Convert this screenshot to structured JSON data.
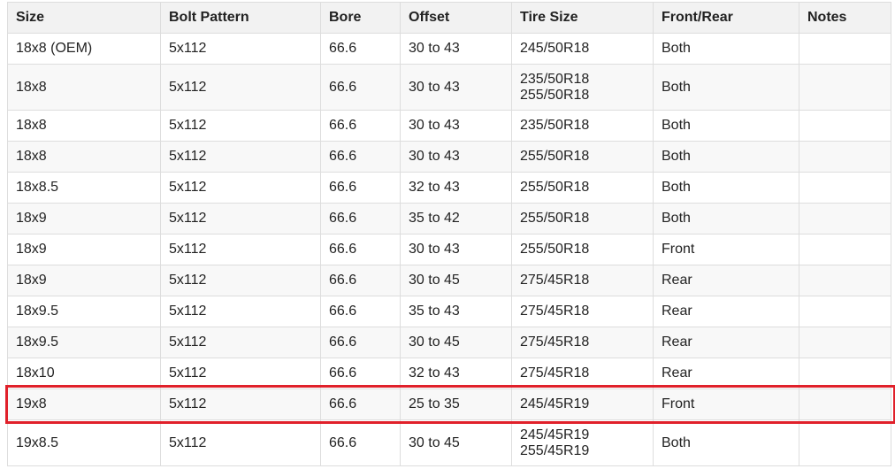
{
  "table": {
    "headers": [
      "Size",
      "Bolt Pattern",
      "Bore",
      "Offset",
      "Tire Size",
      "Front/Rear",
      "Notes"
    ],
    "rows": [
      [
        "18x8 (OEM)",
        "5x112",
        "66.6",
        "30 to 43",
        [
          "245/50R18"
        ],
        "Both",
        ""
      ],
      [
        "18x8",
        "5x112",
        "66.6",
        "30 to 43",
        [
          "235/50R18",
          "255/50R18"
        ],
        "Both",
        ""
      ],
      [
        "18x8",
        "5x112",
        "66.6",
        "30 to 43",
        [
          "235/50R18"
        ],
        "Both",
        ""
      ],
      [
        "18x8",
        "5x112",
        "66.6",
        "30 to 43",
        [
          "255/50R18"
        ],
        "Both",
        ""
      ],
      [
        "18x8.5",
        "5x112",
        "66.6",
        "32 to 43",
        [
          "255/50R18"
        ],
        "Both",
        ""
      ],
      [
        "18x9",
        "5x112",
        "66.6",
        "35 to 42",
        [
          "255/50R18"
        ],
        "Both",
        ""
      ],
      [
        "18x9",
        "5x112",
        "66.6",
        "30 to 43",
        [
          "255/50R18"
        ],
        "Front",
        ""
      ],
      [
        "18x9",
        "5x112",
        "66.6",
        "30 to 45",
        [
          "275/45R18"
        ],
        "Rear",
        ""
      ],
      [
        "18x9.5",
        "5x112",
        "66.6",
        "35 to 43",
        [
          "275/45R18"
        ],
        "Rear",
        ""
      ],
      [
        "18x9.5",
        "5x112",
        "66.6",
        "30 to 45",
        [
          "275/45R18"
        ],
        "Rear",
        ""
      ],
      [
        "18x10",
        "5x112",
        "66.6",
        "32 to 43",
        [
          "275/45R18"
        ],
        "Rear",
        ""
      ],
      [
        "19x8",
        "5x112",
        "66.6",
        "25 to 35",
        [
          "245/45R19"
        ],
        "Front",
        ""
      ],
      [
        "19x8.5",
        "5x112",
        "66.6",
        "30 to 45",
        [
          "245/45R19",
          "255/45R19"
        ],
        "Both",
        ""
      ]
    ]
  },
  "highlight": {
    "row_index": 11,
    "color": "#e0202a"
  }
}
